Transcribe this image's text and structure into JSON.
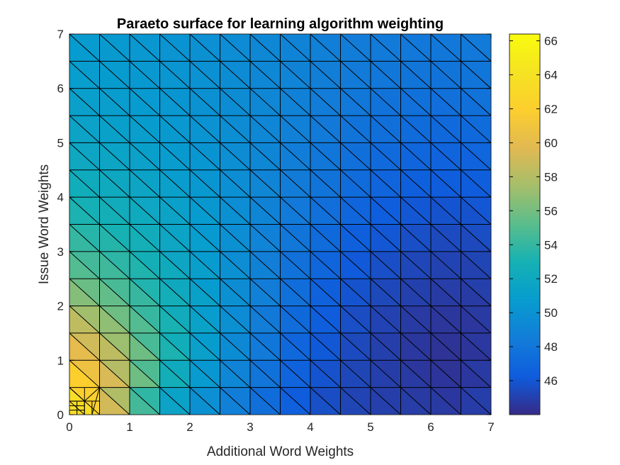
{
  "chart_data": {
    "type": "heatmap",
    "title": "Paraeto surface for learning algorithm weighting",
    "xlabel": "Additional Word Weights",
    "ylabel": "Issue Word Weights",
    "xlim": [
      0,
      7
    ],
    "ylim": [
      0,
      7
    ],
    "x_ticks": [
      "0",
      "1",
      "2",
      "3",
      "4",
      "5",
      "6",
      "7"
    ],
    "y_ticks": [
      "0",
      "1",
      "2",
      "3",
      "4",
      "5",
      "6",
      "7"
    ],
    "grid_step": 0.5,
    "mesh": "triangulated",
    "x": [
      0,
      0.5,
      1,
      1.5,
      2,
      2.5,
      3,
      3.5,
      4,
      4.5,
      5,
      5.5,
      6,
      6.5,
      7
    ],
    "y": [
      0,
      0.5,
      1,
      1.5,
      2,
      2.5,
      3,
      3.5,
      4,
      4.5,
      5,
      5.5,
      6,
      6.5,
      7
    ],
    "z": [
      [
        66.0,
        61.0,
        55.0,
        51.5,
        50.0,
        48.8,
        47.7,
        46.7,
        45.8,
        45.3,
        45.0,
        44.9,
        44.8,
        44.7,
        45.2
      ],
      [
        63.5,
        61.5,
        57.0,
        53.0,
        51.0,
        49.5,
        48.2,
        47.0,
        46.0,
        45.4,
        45.0,
        44.8,
        44.6,
        44.5,
        45.0
      ],
      [
        61.0,
        59.5,
        57.5,
        54.0,
        51.5,
        50.0,
        48.6,
        47.4,
        46.3,
        45.6,
        45.1,
        44.7,
        44.4,
        44.3,
        44.8
      ],
      [
        59.5,
        58.0,
        56.0,
        54.0,
        52.0,
        50.3,
        48.9,
        47.7,
        46.6,
        45.8,
        45.2,
        44.8,
        44.5,
        44.4,
        44.7
      ],
      [
        57.5,
        56.5,
        55.0,
        53.3,
        51.8,
        50.4,
        49.1,
        47.9,
        46.9,
        46.0,
        45.4,
        45.0,
        44.7,
        44.6,
        44.8
      ],
      [
        55.5,
        55.0,
        54.0,
        52.8,
        51.5,
        50.3,
        49.2,
        48.1,
        47.1,
        46.3,
        45.7,
        45.3,
        45.0,
        44.9,
        45.1
      ],
      [
        54.5,
        54.0,
        53.3,
        52.3,
        51.3,
        50.3,
        49.3,
        48.3,
        47.4,
        46.6,
        46.0,
        45.6,
        45.3,
        45.2,
        45.4
      ],
      [
        53.5,
        53.2,
        52.6,
        51.9,
        51.1,
        50.2,
        49.3,
        48.5,
        47.7,
        47.0,
        46.4,
        46.0,
        45.7,
        45.6,
        45.8
      ],
      [
        52.8,
        52.5,
        52.0,
        51.5,
        50.8,
        50.1,
        49.4,
        48.7,
        48.0,
        47.4,
        46.8,
        46.4,
        46.1,
        46.0,
        46.2
      ],
      [
        52.2,
        52.0,
        51.6,
        51.1,
        50.6,
        50.0,
        49.4,
        48.8,
        48.2,
        47.7,
        47.2,
        46.8,
        46.6,
        46.5,
        46.7
      ],
      [
        51.7,
        51.5,
        51.2,
        50.8,
        50.4,
        49.9,
        49.4,
        48.9,
        48.4,
        47.9,
        47.5,
        47.2,
        47.0,
        46.9,
        47.1
      ],
      [
        51.3,
        51.1,
        50.9,
        50.6,
        50.2,
        49.8,
        49.4,
        49.0,
        48.6,
        48.2,
        47.8,
        47.5,
        47.3,
        47.3,
        47.5
      ],
      [
        51.0,
        50.9,
        50.7,
        50.4,
        50.1,
        49.8,
        49.4,
        49.1,
        48.7,
        48.4,
        48.1,
        47.9,
        47.7,
        47.7,
        47.9
      ],
      [
        50.8,
        50.7,
        50.5,
        50.3,
        50.0,
        49.7,
        49.4,
        49.1,
        48.8,
        48.5,
        48.3,
        48.1,
        48.0,
        48.0,
        48.2
      ],
      [
        50.7,
        50.6,
        50.4,
        50.2,
        50.0,
        49.7,
        49.4,
        49.1,
        48.8,
        48.6,
        48.4,
        48.3,
        48.2,
        48.2,
        48.4
      ]
    ],
    "colorbar": {
      "min": 44.0,
      "max": 66.4,
      "ticks": [
        46,
        48,
        50,
        52,
        54,
        56,
        58,
        60,
        62,
        64,
        66
      ],
      "colormap": "parula"
    },
    "mesh_edge_color": "#000000",
    "grid": false
  }
}
